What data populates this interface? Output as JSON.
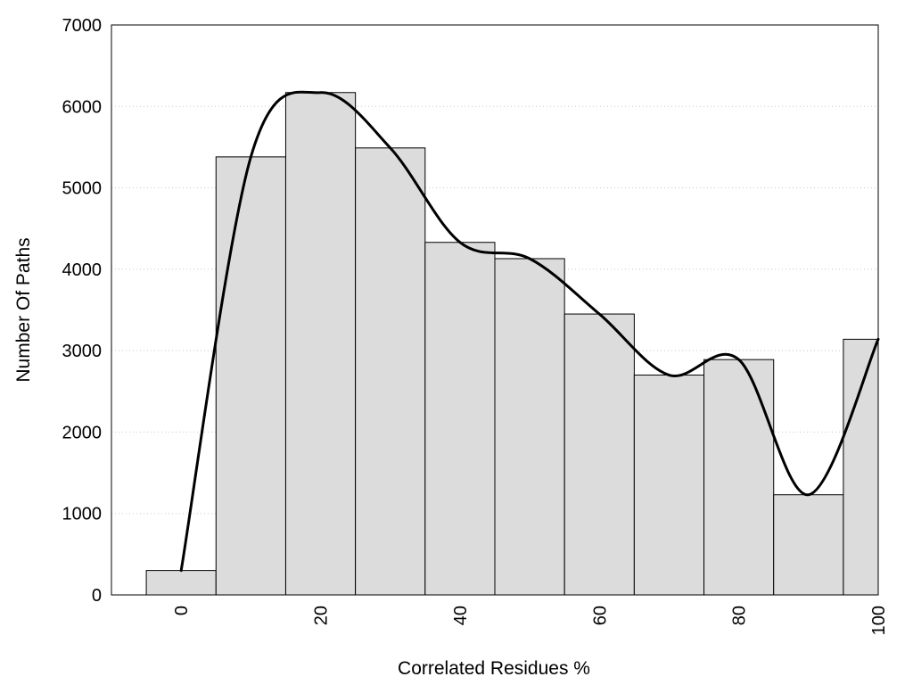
{
  "chart_data": {
    "type": "bar",
    "title": "",
    "xlabel": "Correlated Residues %",
    "ylabel": "Number Of Paths",
    "x": [
      0,
      10,
      20,
      30,
      40,
      50,
      60,
      70,
      80,
      90,
      100
    ],
    "values": [
      300,
      5380,
      6170,
      5490,
      4330,
      4130,
      3450,
      2700,
      2890,
      1230,
      3140
    ],
    "xlim": [
      -10,
      100
    ],
    "ylim": [
      0,
      7000
    ],
    "x_ticks": [
      "0",
      "20",
      "40",
      "60",
      "80",
      "100"
    ],
    "y_ticks": [
      "0",
      "1000",
      "2000",
      "3000",
      "4000",
      "5000",
      "6000",
      "7000"
    ],
    "grid": "horizontal dotted",
    "legend": "none",
    "series": [
      {
        "type": "bar",
        "values": [
          300,
          5380,
          6170,
          5490,
          4330,
          4130,
          3450,
          2700,
          2890,
          1230,
          3140
        ]
      },
      {
        "type": "smooth-line",
        "x": [
          0,
          10,
          20,
          30,
          40,
          50,
          60,
          70,
          80,
          90,
          100
        ],
        "values": [
          300,
          5380,
          6170,
          5490,
          4330,
          4130,
          3450,
          2700,
          2890,
          1230,
          3140
        ]
      }
    ],
    "colors": {
      "bar_fill": "#dcdcdc",
      "bar_stroke": "#000000",
      "line": "#000000",
      "grid": "#c8c8c8",
      "frame": "#000000"
    }
  }
}
